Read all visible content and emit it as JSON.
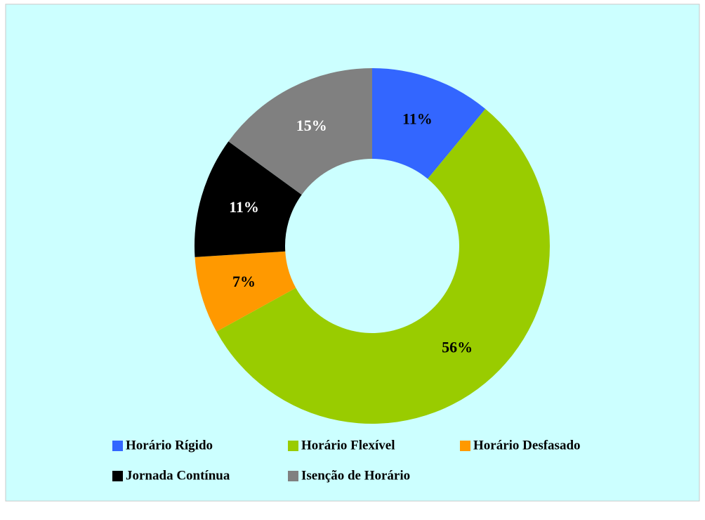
{
  "chart_data": {
    "type": "donut",
    "categories": [
      "Horário Rígido",
      "Horário Flexível",
      "Horário Desfasado",
      "Jornada Contínua",
      "Isenção de Horário"
    ],
    "values": [
      11,
      56,
      7,
      11,
      15
    ],
    "value_labels": [
      "11%",
      "56%",
      "7%",
      "11%",
      "15%"
    ],
    "colors": [
      "#3366ff",
      "#99cc00",
      "#ff9900",
      "#000000",
      "#808080"
    ],
    "legend": "bottom"
  }
}
